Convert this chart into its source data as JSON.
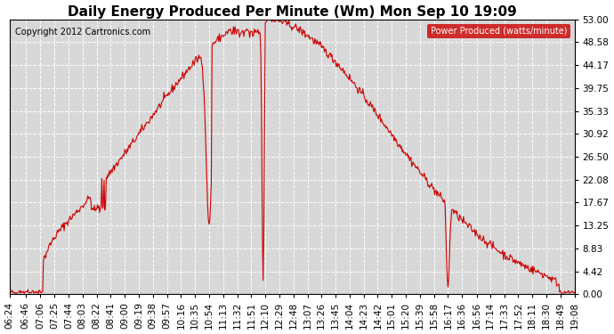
{
  "title": "Daily Energy Produced Per Minute (Wm) Mon Sep 10 19:09",
  "copyright": "Copyright 2012 Cartronics.com",
  "legend_label": "Power Produced (watts/minute)",
  "legend_bg": "#cc0000",
  "legend_text_color": "#ffffff",
  "line_color": "#cc0000",
  "bg_color": "#ffffff",
  "plot_bg_color": "#d8d8d8",
  "grid_color": "#ffffff",
  "title_fontsize": 11,
  "axis_fontsize": 7.5,
  "copyright_fontsize": 7,
  "ymin": 0.0,
  "ymax": 53.0,
  "yticks": [
    0.0,
    4.42,
    8.83,
    13.25,
    17.67,
    22.08,
    26.5,
    30.92,
    35.33,
    39.75,
    44.17,
    48.58,
    53.0
  ],
  "xtick_labels": [
    "06:24",
    "06:46",
    "07:06",
    "07:25",
    "07:44",
    "08:03",
    "08:22",
    "08:41",
    "09:00",
    "09:19",
    "09:38",
    "09:57",
    "10:16",
    "10:35",
    "10:54",
    "11:13",
    "11:32",
    "11:51",
    "12:10",
    "12:29",
    "12:48",
    "13:07",
    "13:26",
    "13:45",
    "14:04",
    "14:23",
    "14:42",
    "15:01",
    "15:20",
    "15:39",
    "15:58",
    "16:17",
    "16:36",
    "16:56",
    "17:14",
    "17:33",
    "17:52",
    "18:11",
    "18:30",
    "18:49",
    "19:08"
  ],
  "start_time": "06:24",
  "end_time": "19:08"
}
